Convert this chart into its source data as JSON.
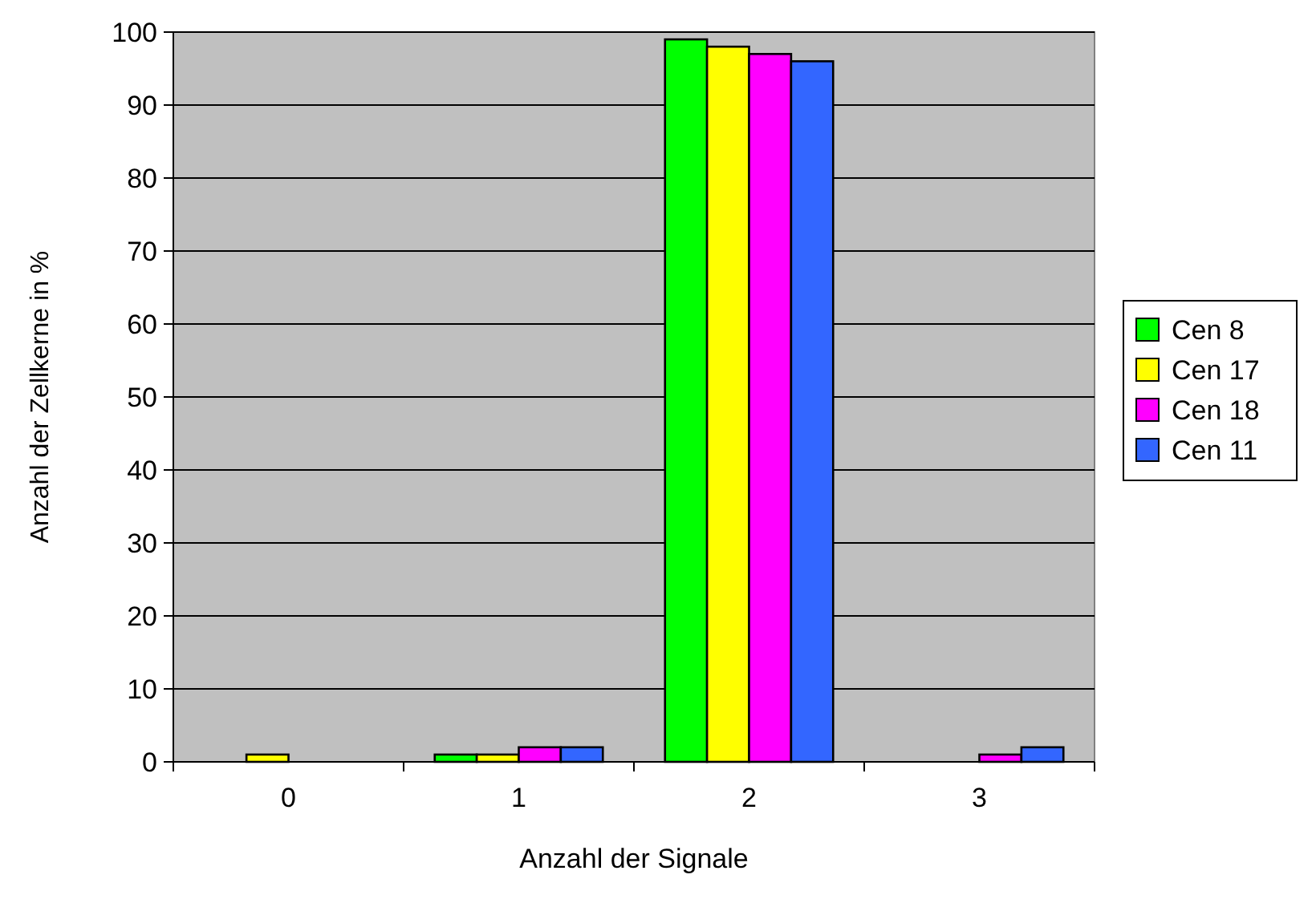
{
  "chart_data": {
    "type": "bar",
    "xlabel": "Anzahl der Signale",
    "ylabel": "Anzahl der Zellkerne in %",
    "categories": [
      "0",
      "1",
      "2",
      "3"
    ],
    "series": [
      {
        "name": "Cen 8",
        "color": "#00ff00",
        "values": [
          0,
          1,
          99,
          0
        ]
      },
      {
        "name": "Cen 17",
        "color": "#ffff00",
        "values": [
          1,
          1,
          98,
          0
        ]
      },
      {
        "name": "Cen 18",
        "color": "#ff00ff",
        "values": [
          0,
          2,
          97,
          1
        ]
      },
      {
        "name": "Cen 11",
        "color": "#3366ff",
        "values": [
          0,
          2,
          96,
          2
        ]
      }
    ],
    "ylim": [
      0,
      100
    ],
    "yticks": [
      0,
      10,
      20,
      30,
      40,
      50,
      60,
      70,
      80,
      90,
      100
    ],
    "grid": "y",
    "legend": "right"
  }
}
